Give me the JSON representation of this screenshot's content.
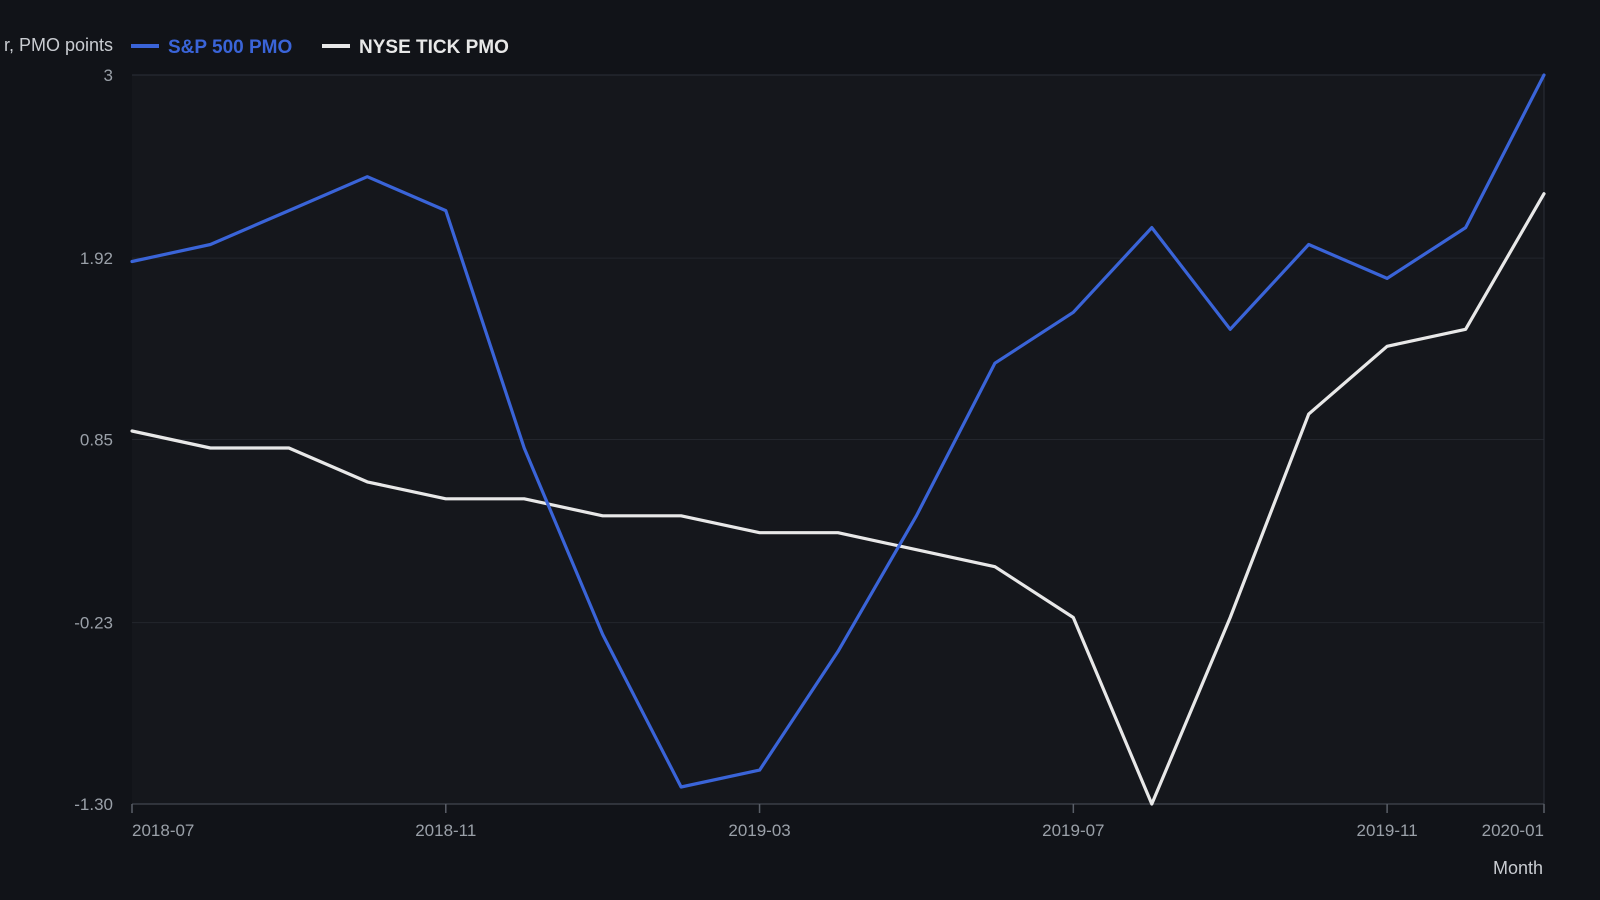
{
  "chart_data": {
    "type": "line",
    "ylabel": "r, PMO points",
    "xlabel": "Month",
    "x": [
      "2018-07",
      "2018-08",
      "2018-09",
      "2018-10",
      "2018-11",
      "2018-12",
      "2019-01",
      "2019-02",
      "2019-03",
      "2019-04",
      "2019-05",
      "2019-06",
      "2019-07",
      "2019-08",
      "2019-09",
      "2019-10",
      "2019-11",
      "2019-12",
      "2020-01"
    ],
    "x_ticks": [
      "2018-07",
      "2018-11",
      "2019-03",
      "2019-07",
      "2019-11",
      "2020-01"
    ],
    "y_ticks": [
      3,
      1.92,
      0.85,
      -0.23,
      -1.3
    ],
    "y_tick_labels": [
      "3",
      "1.92",
      "0.85",
      "-0.23",
      "-1.30"
    ],
    "ylim": [
      -1.3,
      3
    ],
    "grid": true,
    "legend_position": "top-left",
    "series": [
      {
        "name": "S&P 500 PMO",
        "color": "#3a64d8",
        "values": [
          1.9,
          2.0,
          2.2,
          2.4,
          2.2,
          0.8,
          -0.3,
          -1.2,
          -1.1,
          -0.4,
          0.4,
          1.3,
          1.6,
          2.1,
          1.5,
          2.0,
          1.8,
          2.1,
          3.0
        ]
      },
      {
        "name": "NYSE TICK PMO",
        "color": "#e8e8e8",
        "values": [
          0.9,
          0.8,
          0.8,
          0.6,
          0.5,
          0.5,
          0.4,
          0.4,
          0.3,
          0.3,
          0.2,
          0.1,
          -0.2,
          -1.3,
          -0.2,
          1.0,
          1.4,
          1.5,
          2.3
        ]
      }
    ]
  }
}
